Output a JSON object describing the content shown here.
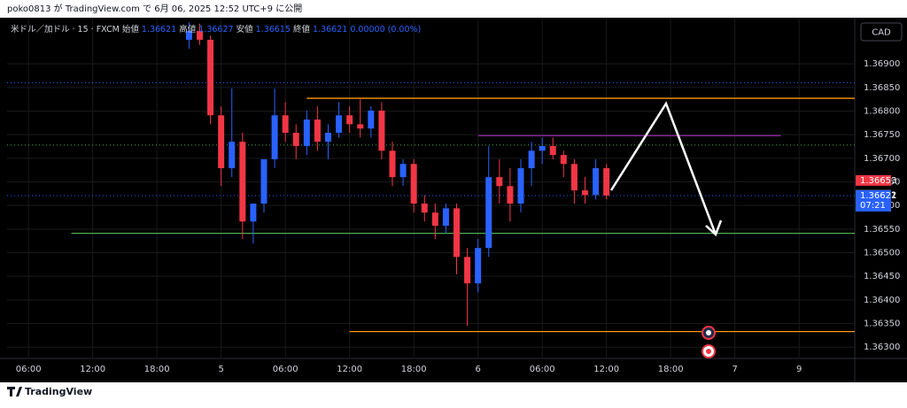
{
  "header": {
    "published": "poko0813 が TradingView.com で 6月 06, 2025 12:52 UTC+9 に公開"
  },
  "chart_data": {
    "type": "candlestick",
    "symbol": "米ドル／加ドル · 15 · FXCM",
    "ohlc_legend": [
      {
        "label": "始値",
        "value": "1.36621"
      },
      {
        "label": "高値",
        "value": "1.36627"
      },
      {
        "label": "安値",
        "value": "1.36615"
      },
      {
        "label": "終値",
        "value": "1.36621"
      }
    ],
    "change": "0.00000 (0.00%)",
    "currency": "CAD",
    "up_color": "#2962ff",
    "down_color": "#f23645",
    "grid": true,
    "x": [
      21,
      22,
      23,
      24,
      25,
      26,
      27,
      28,
      29,
      30,
      31,
      32,
      33,
      34,
      35,
      36,
      37,
      38,
      39,
      40,
      41,
      42,
      43,
      44,
      45,
      46,
      47,
      48,
      49,
      50,
      51,
      52,
      53,
      54,
      55,
      56,
      57,
      58,
      59,
      60
    ],
    "open": [
      1.36951,
      1.3697,
      1.36951,
      1.36791,
      1.36679,
      1.36735,
      1.36566,
      1.36604,
      1.36698,
      1.36791,
      1.36754,
      1.36726,
      1.36782,
      1.36735,
      1.36754,
      1.36791,
      1.36772,
      1.36763,
      1.36801,
      1.36716,
      1.3666,
      1.36688,
      1.36604,
      1.36585,
      1.36557,
      1.36594,
      1.36491,
      1.36435,
      1.3651,
      1.3666,
      1.36641,
      1.36604,
      1.36679,
      1.36716,
      1.36726,
      1.36707,
      1.36688,
      1.36632,
      1.36622,
      1.36679
    ],
    "high": [
      1.36988,
      1.36985,
      1.3696,
      1.3681,
      1.36848,
      1.36754,
      1.36604,
      1.36698,
      1.36848,
      1.36819,
      1.36772,
      1.36801,
      1.3681,
      1.36772,
      1.36819,
      1.3681,
      1.36825,
      1.3681,
      1.36819,
      1.36735,
      1.36698,
      1.36698,
      1.36622,
      1.36604,
      1.36604,
      1.36604,
      1.3651,
      1.36529,
      1.36726,
      1.36698,
      1.36679,
      1.36698,
      1.36735,
      1.36744,
      1.36744,
      1.36716,
      1.36698,
      1.3666,
      1.36698,
      1.36688
    ],
    "low": [
      1.36932,
      1.3694,
      1.36772,
      1.36641,
      1.3666,
      1.36529,
      1.36519,
      1.36585,
      1.36679,
      1.36735,
      1.36698,
      1.36707,
      1.36716,
      1.36698,
      1.36744,
      1.36754,
      1.36744,
      1.36744,
      1.36698,
      1.36641,
      1.36641,
      1.36585,
      1.36566,
      1.36529,
      1.36541,
      1.36454,
      1.36345,
      1.36416,
      1.36491,
      1.36604,
      1.36566,
      1.36585,
      1.36641,
      1.36688,
      1.36698,
      1.3666,
      1.36604,
      1.36604,
      1.36613,
      1.36613
    ],
    "close": [
      1.3697,
      1.36951,
      1.36791,
      1.36679,
      1.36735,
      1.36566,
      1.36604,
      1.36698,
      1.36791,
      1.36754,
      1.36726,
      1.36782,
      1.36735,
      1.36754,
      1.36791,
      1.36772,
      1.36763,
      1.36801,
      1.36716,
      1.3666,
      1.36688,
      1.36604,
      1.36585,
      1.36557,
      1.36594,
      1.36491,
      1.36435,
      1.3651,
      1.3666,
      1.36641,
      1.36604,
      1.36679,
      1.36716,
      1.36726,
      1.36707,
      1.36688,
      1.36632,
      1.36622,
      1.36679,
      1.36621
    ],
    "xlim": [
      4,
      83.2
    ],
    "xticks": [
      {
        "value": 6,
        "label": "06:00"
      },
      {
        "value": 12,
        "label": "12:00"
      },
      {
        "value": 18,
        "label": "18:00"
      },
      {
        "value": 24,
        "label": "5"
      },
      {
        "value": 30,
        "label": "06:00"
      },
      {
        "value": 36,
        "label": "12:00"
      },
      {
        "value": 42,
        "label": "18:00"
      },
      {
        "value": 48,
        "label": "6"
      },
      {
        "value": 54,
        "label": "06:00"
      },
      {
        "value": 60,
        "label": "12:00"
      },
      {
        "value": 66,
        "label": "18:00"
      },
      {
        "value": 72,
        "label": "7"
      },
      {
        "value": 78,
        "label": "9"
      }
    ],
    "ylim": [
      1.36276,
      1.36994
    ],
    "yticks": [
      {
        "value": 1.363,
        "label": "1.36300"
      },
      {
        "value": 1.3635,
        "label": "1.36350"
      },
      {
        "value": 1.364,
        "label": "1.36400"
      },
      {
        "value": 1.3645,
        "label": "1.36450"
      },
      {
        "value": 1.365,
        "label": "1.36500"
      },
      {
        "value": 1.3655,
        "label": "1.36550"
      },
      {
        "value": 1.366,
        "label": "1.36600"
      },
      {
        "value": 1.3665,
        "label": "1.36650"
      },
      {
        "value": 1.367,
        "label": "1.36700"
      },
      {
        "value": 1.3675,
        "label": "1.36750"
      },
      {
        "value": 1.368,
        "label": "1.36800"
      },
      {
        "value": 1.3685,
        "label": "1.36850"
      },
      {
        "value": 1.369,
        "label": "1.36900"
      }
    ],
    "levels": [
      {
        "value": 1.3686,
        "color": "#2962ff",
        "style": "dotted"
      },
      {
        "value": 1.36728,
        "color": "#4caf50",
        "style": "dotted"
      },
      {
        "value": 1.36621,
        "color": "#2962ff",
        "style": "dotted"
      },
      {
        "value": 1.36827,
        "color": "#ff9800",
        "style": "solid",
        "from": 32
      },
      {
        "value": 1.36748,
        "color": "#9c27b0",
        "style": "solid",
        "from": 48,
        "to": 76.3
      },
      {
        "value": 1.36541,
        "color": "#4caf50",
        "style": "solid",
        "from": 10
      },
      {
        "value": 1.36333,
        "color": "#ff9800",
        "style": "solid",
        "from": 36
      }
    ],
    "price_tags": [
      {
        "value": 1.36653,
        "label": "1.36653",
        "color": "#f23645"
      },
      {
        "value": 1.36622,
        "label": "1.36622",
        "color": "#5d606b"
      },
      {
        "value": 1.36621,
        "label": "1.36621",
        "color": "#2962ff",
        "countdown": "07:21"
      }
    ]
  },
  "footer": {
    "brand": "TradingView"
  }
}
